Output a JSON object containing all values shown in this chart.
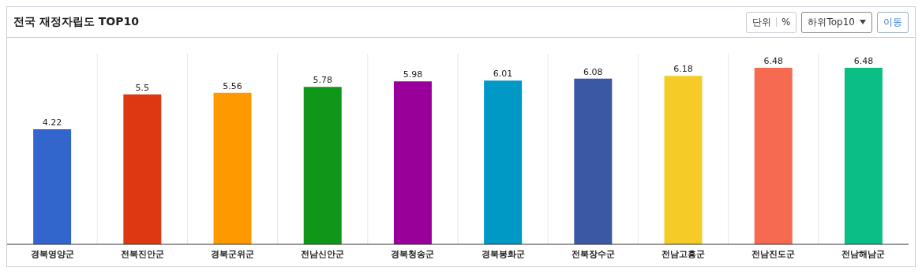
{
  "chart_data": {
    "type": "bar",
    "title": "전국 재정자립도 TOP10",
    "annotations": [
      "단위",
      "%",
      "하위Top10",
      "이동"
    ],
    "categories": [
      "경북영양군",
      "전북진안군",
      "경북군위군",
      "전남신안군",
      "경북청송군",
      "경북봉화군",
      "전북장수군",
      "전남고흥군",
      "전남진도군",
      "전남해남군"
    ],
    "values": [
      4.22,
      5.5,
      5.56,
      5.78,
      5.98,
      6.01,
      6.08,
      6.18,
      6.48,
      6.48
    ],
    "colors": [
      "#3366cc",
      "#dc3912",
      "#ff9900",
      "#109618",
      "#990099",
      "#0099c6",
      "#3b58a4",
      "#f5cb27",
      "#f56a50",
      "#0abf86"
    ],
    "data_labels": true,
    "grid": "x"
  }
}
